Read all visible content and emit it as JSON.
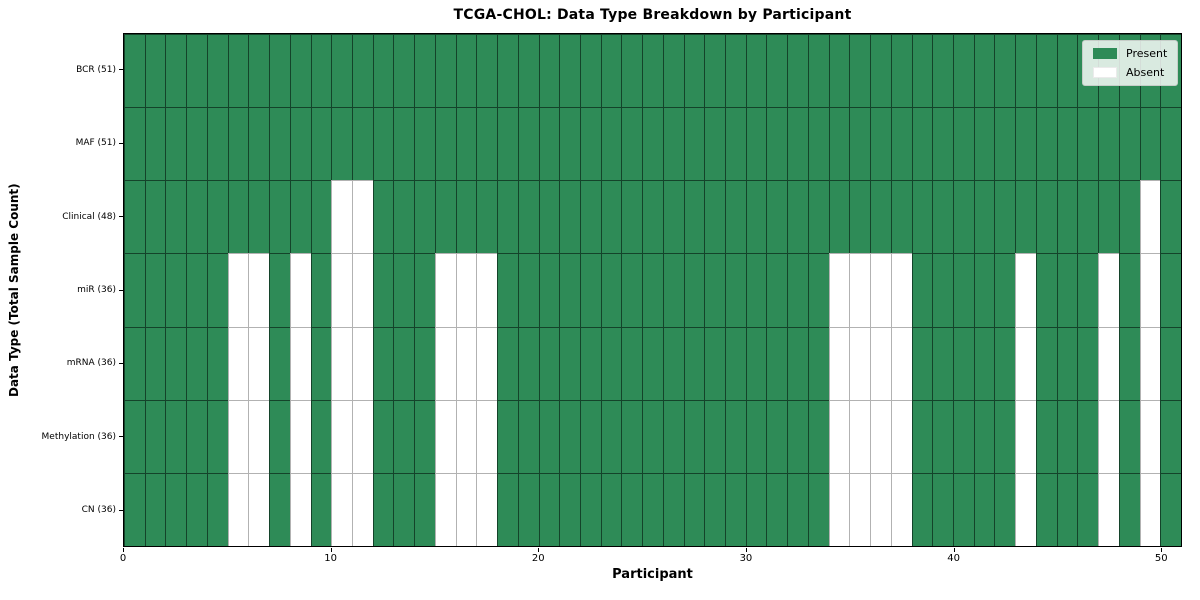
{
  "chart_data": {
    "type": "heatmap",
    "title": "TCGA-CHOL: Data Type Breakdown by Participant",
    "xlabel": "Participant",
    "ylabel": "Data Type (Total Sample Count)",
    "n_participants": 51,
    "xlim": [
      0,
      51
    ],
    "x_ticks": [
      0,
      10,
      20,
      30,
      40,
      50
    ],
    "grid": true,
    "legend_position": "upper right",
    "legend": [
      {
        "label": "Present",
        "color": "#2e8b57"
      },
      {
        "label": "Absent",
        "color": "#ffffff"
      }
    ],
    "rows": [
      {
        "label": "BCR (51)",
        "data_type": "BCR",
        "present_count": 51,
        "absent_participants": []
      },
      {
        "label": "MAF (51)",
        "data_type": "MAF",
        "present_count": 51,
        "absent_participants": []
      },
      {
        "label": "Clinical (48)",
        "data_type": "Clinical",
        "present_count": 48,
        "absent_participants": [
          10,
          11,
          49
        ]
      },
      {
        "label": "miR (36)",
        "data_type": "miR",
        "present_count": 36,
        "absent_participants": [
          5,
          6,
          8,
          10,
          11,
          15,
          16,
          17,
          34,
          35,
          36,
          37,
          43,
          47,
          49
        ]
      },
      {
        "label": "mRNA (36)",
        "data_type": "mRNA",
        "present_count": 36,
        "absent_participants": [
          5,
          6,
          8,
          10,
          11,
          15,
          16,
          17,
          34,
          35,
          36,
          37,
          43,
          47,
          49
        ]
      },
      {
        "label": "Methylation (36)",
        "data_type": "Methylation",
        "present_count": 36,
        "absent_participants": [
          5,
          6,
          8,
          10,
          11,
          15,
          16,
          17,
          34,
          35,
          36,
          37,
          43,
          47,
          49
        ]
      },
      {
        "label": "CN (36)",
        "data_type": "CN",
        "present_count": 36,
        "absent_participants": [
          5,
          6,
          8,
          10,
          11,
          15,
          16,
          17,
          34,
          35,
          36,
          37,
          43,
          47,
          49
        ]
      }
    ],
    "colors": {
      "present": "#2e8b57",
      "absent": "#ffffff",
      "grid_on_present": "rgba(0,10,5,0.55)",
      "grid_on_absent": "rgba(0,0,0,0.30)",
      "spine": "#000000"
    }
  }
}
